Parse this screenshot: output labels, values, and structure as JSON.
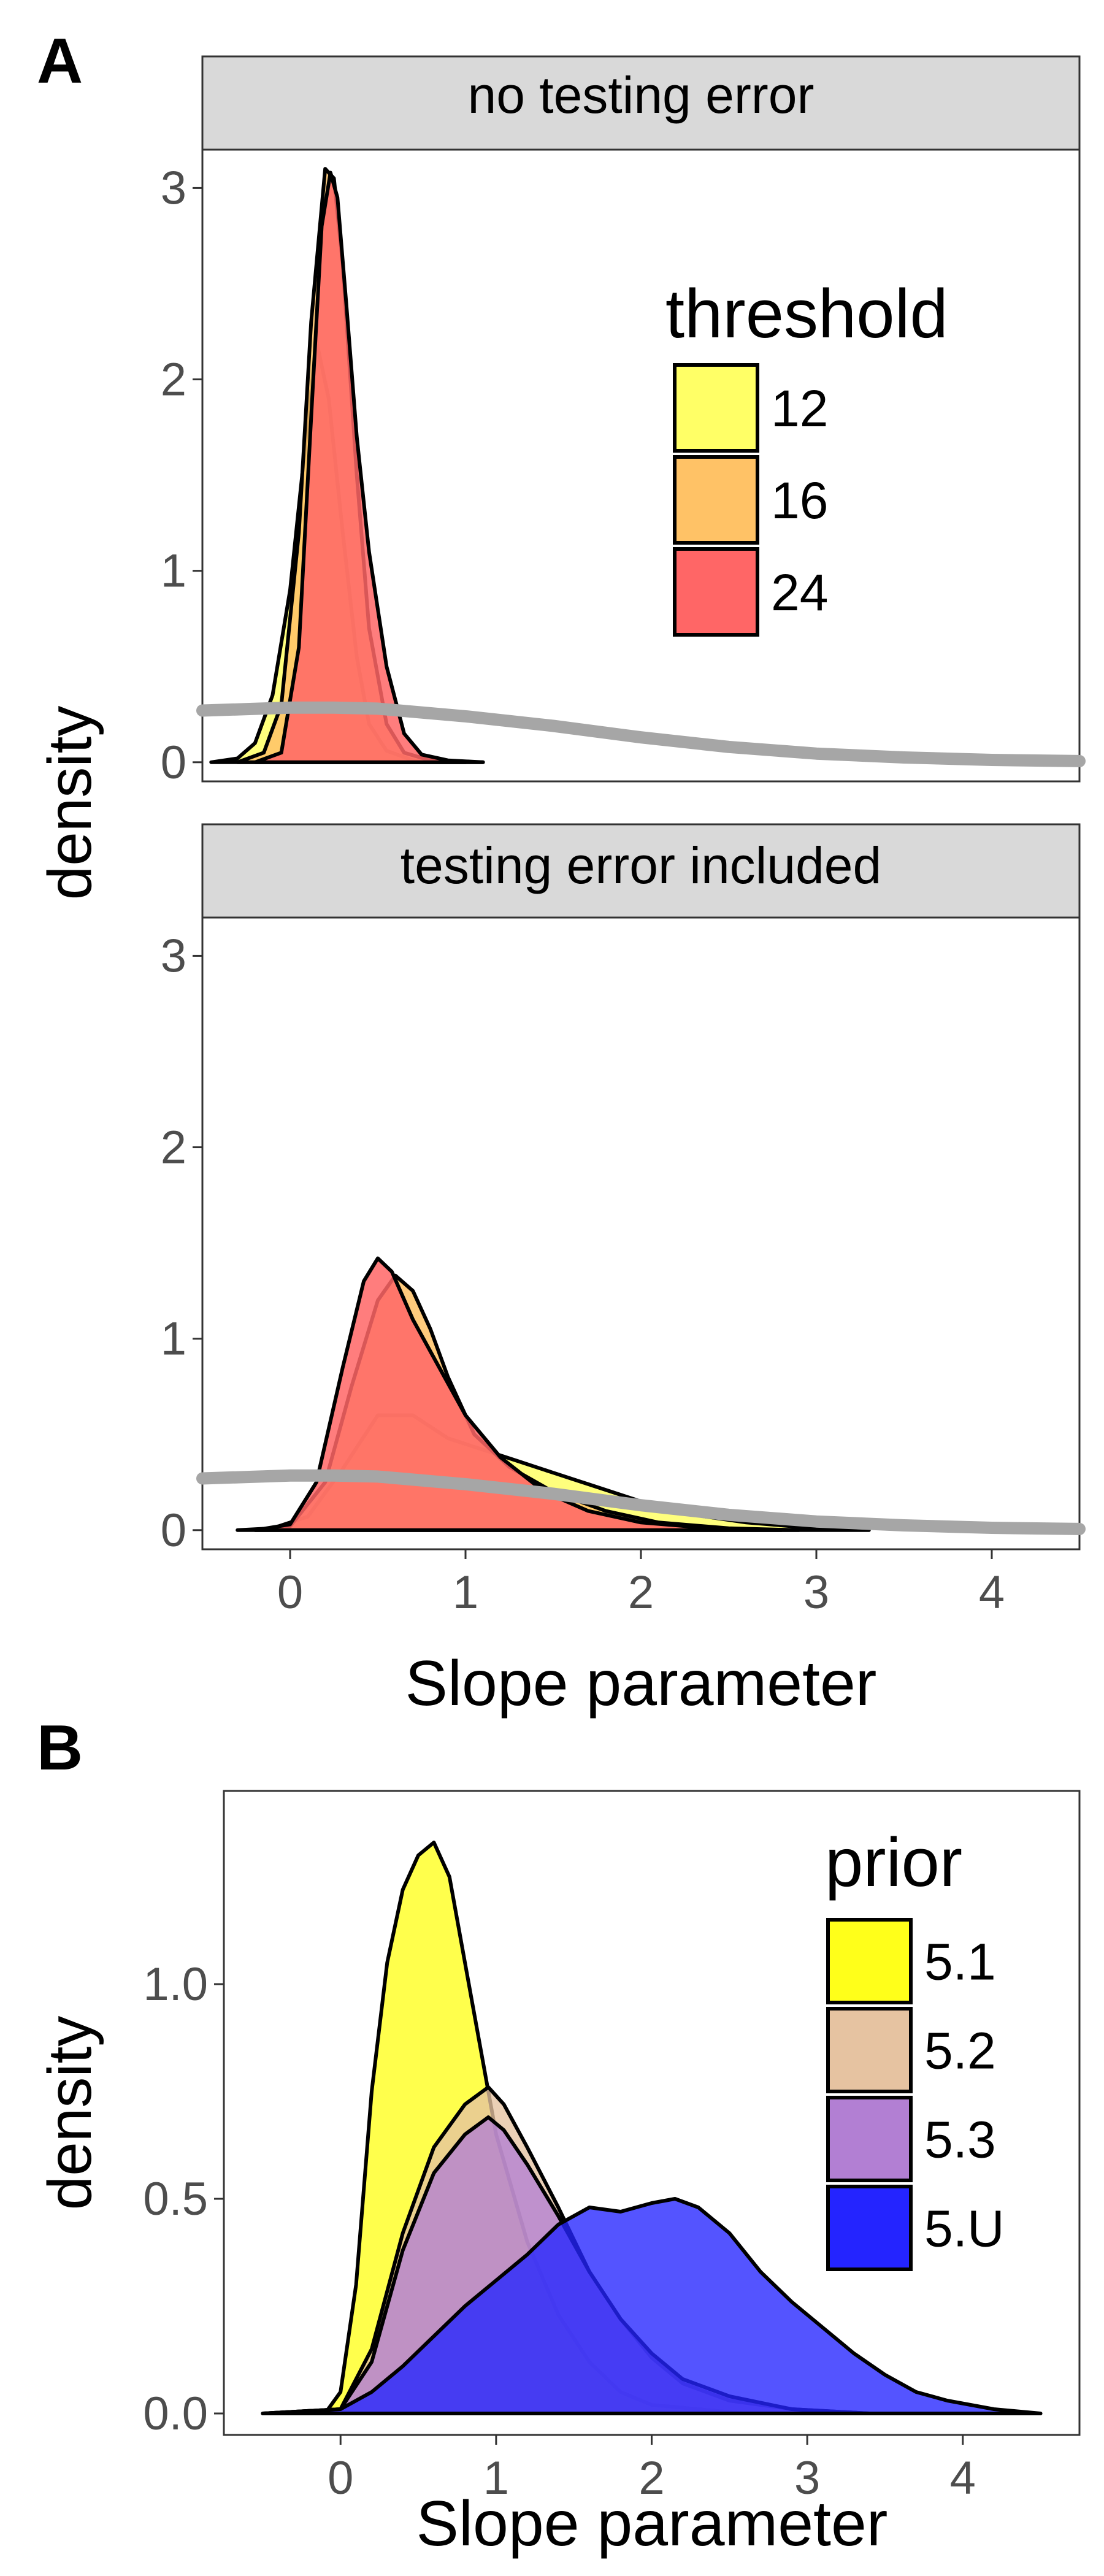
{
  "chart_data": [
    {
      "panel_label": "A",
      "type": "area",
      "xlabel": "Slope parameter",
      "ylabel": "density",
      "xlim": [
        -0.5,
        4.5
      ],
      "ylim": [
        -0.1,
        3.2
      ],
      "x_ticks": [
        0,
        1,
        2,
        3,
        4
      ],
      "y_ticks": [
        0,
        1,
        2,
        3
      ],
      "grid": false,
      "legend": {
        "title": "threshold",
        "placement": "top-right inside first facet",
        "entries": [
          {
            "label": "12",
            "color": "#ffff66"
          },
          {
            "label": "16",
            "color": "#ffc266"
          },
          {
            "label": "24",
            "color": "#ff6666"
          }
        ]
      },
      "facets": [
        {
          "title": "no testing error",
          "series": [
            {
              "name": "12",
              "color": "#ffff66",
              "x": [
                -0.45,
                -0.3,
                -0.2,
                -0.1,
                0.0,
                0.08,
                0.15,
                0.22,
                0.3,
                0.38,
                0.45,
                0.55,
                0.7,
                0.9,
                1.1
              ],
              "y": [
                0.0,
                0.02,
                0.1,
                0.35,
                0.9,
                1.6,
                2.2,
                1.9,
                1.2,
                0.55,
                0.2,
                0.06,
                0.01,
                0.0,
                0.0
              ]
            },
            {
              "name": "16",
              "color": "#ffc266",
              "x": [
                -0.3,
                -0.15,
                -0.05,
                0.05,
                0.12,
                0.2,
                0.25,
                0.3,
                0.38,
                0.45,
                0.55,
                0.65,
                0.8,
                1.0
              ],
              "y": [
                0.0,
                0.05,
                0.3,
                1.2,
                2.3,
                3.1,
                3.05,
                2.6,
                1.5,
                0.7,
                0.2,
                0.05,
                0.01,
                0.0
              ]
            },
            {
              "name": "24",
              "color": "#ff6666",
              "x": [
                -0.2,
                -0.05,
                0.05,
                0.12,
                0.18,
                0.23,
                0.27,
                0.32,
                0.38,
                0.45,
                0.55,
                0.65,
                0.75,
                0.9,
                1.1
              ],
              "y": [
                0.0,
                0.05,
                0.6,
                1.8,
                2.8,
                3.08,
                2.95,
                2.4,
                1.7,
                1.1,
                0.5,
                0.15,
                0.04,
                0.01,
                0.0
              ]
            },
            {
              "name": "prior",
              "color": "#a6a6a6",
              "x": [
                -0.5,
                0.0,
                0.25,
                0.5,
                1.0,
                1.5,
                2.0,
                2.5,
                3.0,
                3.5,
                4.0,
                4.5
              ],
              "y": [
                0.27,
                0.285,
                0.285,
                0.28,
                0.24,
                0.19,
                0.13,
                0.08,
                0.045,
                0.025,
                0.012,
                0.006
              ]
            }
          ]
        },
        {
          "title": "testing error included",
          "series": [
            {
              "name": "12",
              "color": "#ffff66",
              "x": [
                -0.3,
                -0.1,
                0.1,
                0.3,
                0.5,
                0.7,
                0.9,
                1.1,
                1.3,
                1.5,
                1.7,
                1.9,
                2.1,
                2.3,
                2.6,
                3.0,
                3.3
              ],
              "y": [
                0.0,
                0.01,
                0.07,
                0.32,
                0.6,
                0.6,
                0.48,
                0.42,
                0.36,
                0.3,
                0.24,
                0.18,
                0.12,
                0.08,
                0.04,
                0.01,
                0.0
              ]
            },
            {
              "name": "16",
              "color": "#ffc266",
              "x": [
                -0.2,
                0.0,
                0.2,
                0.35,
                0.5,
                0.6,
                0.7,
                0.8,
                0.9,
                1.05,
                1.25,
                1.5,
                1.8,
                2.1,
                2.5,
                2.9
              ],
              "y": [
                0.0,
                0.02,
                0.25,
                0.75,
                1.2,
                1.33,
                1.25,
                1.05,
                0.8,
                0.5,
                0.33,
                0.2,
                0.1,
                0.04,
                0.01,
                0.0
              ]
            },
            {
              "name": "24",
              "color": "#ff6666",
              "x": [
                -0.2,
                0.0,
                0.15,
                0.3,
                0.42,
                0.5,
                0.58,
                0.7,
                0.85,
                1.0,
                1.2,
                1.45,
                1.7,
                2.0,
                2.4,
                2.8
              ],
              "y": [
                0.0,
                0.03,
                0.25,
                0.85,
                1.3,
                1.42,
                1.35,
                1.1,
                0.85,
                0.6,
                0.38,
                0.2,
                0.1,
                0.04,
                0.01,
                0.0
              ]
            },
            {
              "name": "prior",
              "color": "#a6a6a6",
              "x": [
                -0.5,
                0.0,
                0.25,
                0.5,
                1.0,
                1.5,
                2.0,
                2.5,
                3.0,
                3.5,
                4.0,
                4.5
              ],
              "y": [
                0.27,
                0.285,
                0.285,
                0.28,
                0.24,
                0.19,
                0.13,
                0.08,
                0.045,
                0.025,
                0.012,
                0.006
              ]
            }
          ]
        }
      ]
    },
    {
      "panel_label": "B",
      "type": "area",
      "xlabel": "Slope parameter",
      "ylabel": "density",
      "xlim": [
        -0.75,
        4.75
      ],
      "ylim": [
        -0.05,
        1.45
      ],
      "x_ticks": [
        0,
        1,
        2,
        3,
        4
      ],
      "y_ticks": [
        0.0,
        0.5,
        1.0
      ],
      "y_tick_labels": [
        "0.0",
        "0.5",
        "1.0"
      ],
      "grid": false,
      "legend": {
        "title": "prior",
        "placement": "top-right",
        "entries": [
          {
            "label": "5.1",
            "color": "#ffff1a"
          },
          {
            "label": "5.2",
            "color": "#e6c3a1"
          },
          {
            "label": "5.3",
            "color": "#b27fd3"
          },
          {
            "label": "5.U",
            "color": "#2424ff"
          }
        ]
      },
      "series": [
        {
          "name": "5.1",
          "color": "#ffff1a",
          "x": [
            -0.5,
            -0.1,
            0.0,
            0.1,
            0.2,
            0.3,
            0.4,
            0.5,
            0.6,
            0.7,
            0.8,
            0.9,
            1.0,
            1.2,
            1.4,
            1.6,
            1.8,
            2.0,
            2.3,
            2.6,
            3.0
          ],
          "y": [
            0.0,
            0.0,
            0.05,
            0.3,
            0.75,
            1.05,
            1.22,
            1.3,
            1.33,
            1.25,
            1.05,
            0.85,
            0.65,
            0.4,
            0.23,
            0.12,
            0.05,
            0.02,
            0.01,
            0.0,
            0.0
          ]
        },
        {
          "name": "5.2",
          "color": "#e6c3a1",
          "x": [
            -0.5,
            0.0,
            0.2,
            0.4,
            0.6,
            0.8,
            0.95,
            1.05,
            1.2,
            1.4,
            1.6,
            1.8,
            2.0,
            2.2,
            2.5,
            2.9,
            3.4,
            4.0
          ],
          "y": [
            0.0,
            0.01,
            0.15,
            0.42,
            0.62,
            0.72,
            0.76,
            0.72,
            0.62,
            0.48,
            0.33,
            0.22,
            0.13,
            0.07,
            0.03,
            0.01,
            0.0,
            0.0
          ]
        },
        {
          "name": "5.3",
          "color": "#b27fd3",
          "x": [
            -0.5,
            0.0,
            0.2,
            0.4,
            0.6,
            0.8,
            0.95,
            1.05,
            1.2,
            1.4,
            1.6,
            1.8,
            2.0,
            2.2,
            2.5,
            2.9,
            3.4,
            4.0
          ],
          "y": [
            0.0,
            0.01,
            0.12,
            0.38,
            0.56,
            0.65,
            0.69,
            0.66,
            0.58,
            0.46,
            0.33,
            0.22,
            0.14,
            0.08,
            0.04,
            0.01,
            0.0,
            0.0
          ]
        },
        {
          "name": "5.U",
          "color": "#2424ff",
          "x": [
            -0.5,
            0.0,
            0.2,
            0.4,
            0.6,
            0.8,
            1.0,
            1.2,
            1.4,
            1.6,
            1.8,
            2.0,
            2.15,
            2.3,
            2.5,
            2.7,
            2.9,
            3.1,
            3.3,
            3.5,
            3.7,
            3.9,
            4.2,
            4.5
          ],
          "y": [
            0.0,
            0.01,
            0.05,
            0.11,
            0.18,
            0.25,
            0.31,
            0.37,
            0.44,
            0.48,
            0.47,
            0.49,
            0.5,
            0.48,
            0.42,
            0.33,
            0.26,
            0.2,
            0.14,
            0.09,
            0.05,
            0.03,
            0.01,
            0.0
          ]
        }
      ]
    }
  ]
}
